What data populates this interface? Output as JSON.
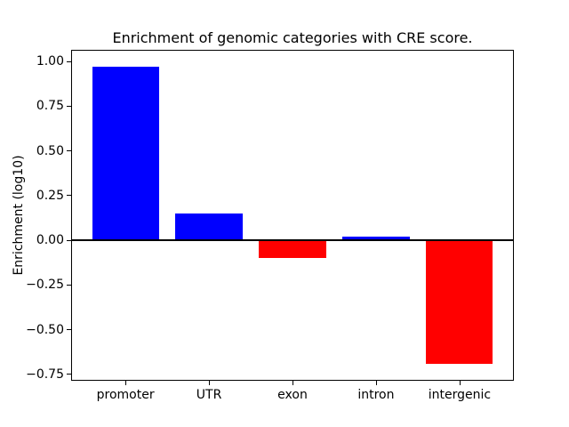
{
  "page": {
    "background_color": "#ffffff"
  },
  "chart_data": {
    "type": "bar",
    "title": "Enrichment of genomic categories with CRE score.",
    "xlabel": "",
    "ylabel": "Enrichment (log10)",
    "categories": [
      "promoter",
      "UTR",
      "exon",
      "intron",
      "intergenic"
    ],
    "values": [
      0.97,
      0.15,
      -0.1,
      0.02,
      -0.69
    ],
    "bar_colors": [
      "#0000ff",
      "#0000ff",
      "#ff0000",
      "#0000ff",
      "#ff0000"
    ],
    "positive_color": "#0000ff",
    "negative_color": "#ff0000",
    "ylim": [
      -0.78,
      1.06
    ],
    "xlim": [
      -0.64,
      4.64
    ],
    "bar_width": 0.8,
    "ytick_values": [
      1.0,
      0.75,
      0.5,
      0.25,
      0.0,
      -0.25,
      -0.5,
      -0.75
    ],
    "ytick_labels": [
      "1.00",
      "0.75",
      "0.50",
      "0.25",
      "0.00",
      "−0.25",
      "−0.50",
      "−0.75"
    ],
    "zero_line": {
      "color": "#000000",
      "thickness_px": 2
    },
    "axis_color": "#000000",
    "grid": false,
    "legend": null
  }
}
